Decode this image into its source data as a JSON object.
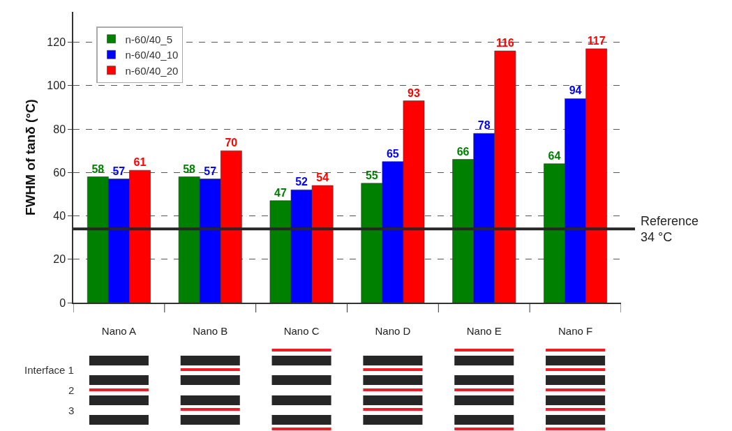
{
  "chart_data": {
    "type": "bar",
    "ylabel": "FWHM of tanδ (°C)",
    "categories": [
      "Nano A",
      "Nano B",
      "Nano C",
      "Nano D",
      "Nano E",
      "Nano F"
    ],
    "series": [
      {
        "name": "n-60/40_5",
        "color": "#008000",
        "values": [
          58,
          58,
          47,
          55,
          66,
          64
        ]
      },
      {
        "name": "n-60/40_10",
        "color": "#0000ff",
        "values": [
          57,
          57,
          52,
          65,
          78,
          94
        ]
      },
      {
        "name": "n-60/40_20",
        "color": "#ff0000",
        "values": [
          61,
          70,
          54,
          93,
          116,
          117
        ]
      }
    ],
    "data_labels": true,
    "ylim": [
      0,
      134
    ],
    "yticks": [
      0,
      20,
      40,
      60,
      80,
      100,
      120
    ],
    "grid": "y",
    "legend": "top left",
    "ref_lines": [
      {
        "axis": "y",
        "value": 34,
        "label": "Reference\n34 °C",
        "color": "#262626"
      }
    ],
    "annotations": [
      "Interface 1",
      "2",
      "3"
    ]
  }
}
